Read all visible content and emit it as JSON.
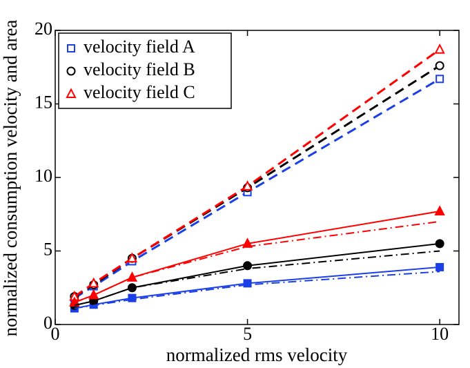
{
  "chart_data": {
    "type": "line",
    "x_label": "normalized rms velocity",
    "y_label": "normalized consumption velocity and area",
    "x": [
      0.5,
      1,
      2,
      5,
      10
    ],
    "xlim": [
      0,
      10.5
    ],
    "ylim": [
      0,
      20
    ],
    "xticks": [
      0,
      5,
      10
    ],
    "yticks": [
      0,
      5,
      10,
      15,
      20
    ],
    "legend": "upper left",
    "series": [
      {
        "name": "velocity field A",
        "color": "#1a3fe6",
        "marker": "square",
        "filled": false,
        "line": "dashed",
        "values": [
          1.8,
          2.6,
          4.3,
          9.0,
          16.7
        ]
      },
      {
        "name": "velocity field B",
        "color": "#000000",
        "marker": "circle",
        "filled": false,
        "line": "dashed",
        "values": [
          1.9,
          2.7,
          4.5,
          9.3,
          17.6
        ]
      },
      {
        "name": "velocity field C",
        "color": "#ff0000",
        "marker": "triangle",
        "filled": false,
        "line": "dashed",
        "values": [
          1.9,
          2.8,
          4.5,
          9.4,
          18.7
        ]
      },
      {
        "color": "#1a3fe6",
        "marker": "square",
        "filled": true,
        "line": "solid",
        "values": [
          1.1,
          1.35,
          1.8,
          2.8,
          3.9
        ]
      },
      {
        "color": "#000000",
        "marker": "circle",
        "filled": true,
        "line": "solid",
        "values": [
          1.3,
          1.6,
          2.5,
          4.0,
          5.5
        ]
      },
      {
        "color": "#ff0000",
        "marker": "triangle",
        "filled": true,
        "line": "solid",
        "values": [
          1.5,
          2.0,
          3.2,
          5.5,
          7.7
        ]
      },
      {
        "color": "#1a3fe6",
        "marker": "none",
        "filled": false,
        "line": "dashdot",
        "values": [
          1.1,
          1.3,
          1.7,
          2.7,
          3.6
        ]
      },
      {
        "color": "#000000",
        "marker": "none",
        "filled": false,
        "line": "dashdot",
        "values": [
          1.3,
          1.6,
          2.5,
          3.8,
          5.0
        ]
      },
      {
        "color": "#ff0000",
        "marker": "none",
        "filled": false,
        "line": "dashdot",
        "values": [
          1.5,
          2.0,
          3.2,
          5.3,
          7.0
        ]
      }
    ]
  }
}
